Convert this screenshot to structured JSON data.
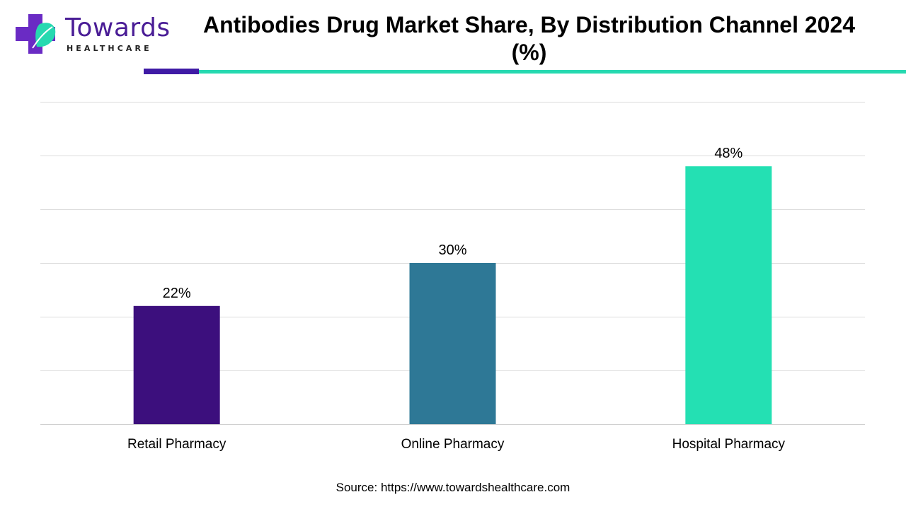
{
  "brand": {
    "name": "Towards",
    "tagline": "HEALTHCARE",
    "colors": {
      "primary": "#4a1d96",
      "accent": "#26d9b0"
    }
  },
  "title": "Antibodies Drug Market Share, By Distribution Channel 2024 (%)",
  "source": "Source: https://www.towardshealthcare.com",
  "chart_data": {
    "type": "bar",
    "title": "Antibodies Drug Market Share, By Distribution Channel 2024 (%)",
    "categories": [
      "Retail Pharmacy",
      "Online Pharmacy",
      "Hospital Pharmacy"
    ],
    "values": [
      22,
      30,
      48
    ],
    "data_labels": [
      "22%",
      "30%",
      "48%"
    ],
    "colors": [
      "#3c0f7d",
      "#2e7896",
      "#24e0b3"
    ],
    "xlabel": "",
    "ylabel": "",
    "ylim": [
      0,
      60
    ],
    "grid": true,
    "legend": "none"
  }
}
